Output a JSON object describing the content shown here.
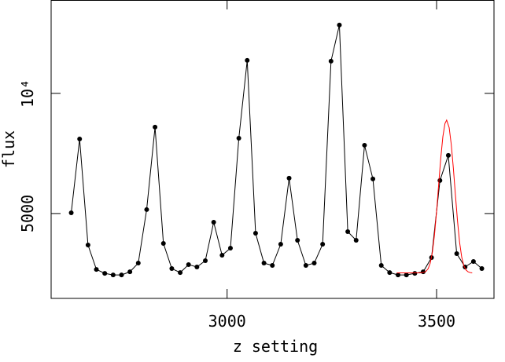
{
  "chart_data": {
    "type": "line",
    "log_y": true,
    "xlabel": "z setting",
    "ylabel": "flux",
    "xlim": [
      2580,
      3637
    ],
    "ylim": [
      3064,
      17140
    ],
    "xticks": [
      3000,
      3500
    ],
    "yticks": [
      5000,
      {
        "value": 10000,
        "label": "10⁴"
      }
    ],
    "series": [
      {
        "color": "#000000",
        "markers": true,
        "x": [
          2628,
          2648,
          2668,
          2688,
          2708,
          2728,
          2748,
          2768,
          2788,
          2808,
          2828,
          2848,
          2868,
          2888,
          2908,
          2928,
          2948,
          2968,
          2988,
          3008,
          3028,
          3048,
          3068,
          3088,
          3108,
          3128,
          3148,
          3168,
          3188,
          3208,
          3228,
          3248,
          3268,
          3288,
          3308,
          3328,
          3348,
          3368,
          3388,
          3408,
          3428,
          3448,
          3468,
          3488,
          3508,
          3528,
          3548,
          3568,
          3588,
          3608
        ],
        "values": [
          5022,
          7687,
          4170,
          3622,
          3540,
          3509,
          3509,
          3572,
          3756,
          5114,
          8231,
          4207,
          3639,
          3556,
          3723,
          3673,
          3808,
          4756,
          3930,
          4094,
          7722,
          12097,
          4463,
          3756,
          3706,
          4188,
          6131,
          4284,
          3706,
          3756,
          4188,
          12041,
          14834,
          4503,
          4284,
          7415,
          6103,
          3706,
          3556,
          3509,
          3509,
          3540,
          3572,
          3877,
          6048,
          6991,
          3966,
          3673,
          3791,
          3639
        ]
      },
      {
        "color": "#ff0000",
        "markers": false,
        "x": [
          3405,
          3440,
          3460,
          3470,
          3475,
          3480,
          3485,
          3490,
          3495,
          3500,
          3505,
          3510,
          3515,
          3520,
          3524,
          3530,
          3535,
          3540,
          3545,
          3550,
          3555,
          3560,
          3565,
          3570,
          3575,
          3580,
          3585
        ],
        "values": [
          3550,
          3550,
          3551,
          3562,
          3584,
          3639,
          3761,
          4002,
          4423,
          5061,
          5919,
          6888,
          7792,
          8405,
          8570,
          8209,
          7451,
          6497,
          5553,
          4780,
          4228,
          3886,
          3701,
          3612,
          3573,
          3557,
          3551
        ]
      }
    ]
  }
}
